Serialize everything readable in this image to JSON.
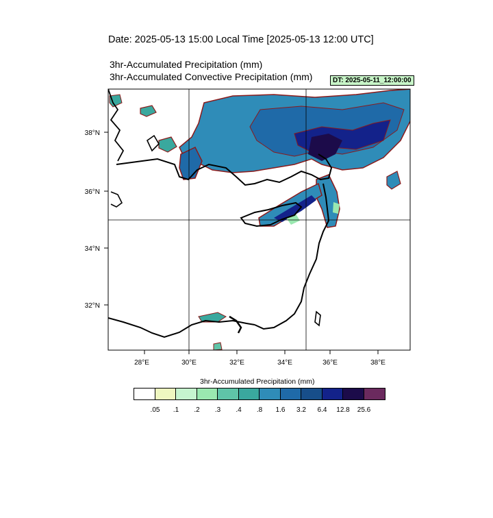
{
  "header": {
    "date_line": "Date: 2025-05-13  15:00 Local Time [2025-05-13  12:00 UTC]",
    "title_line1": "3hr-Accumulated Precipitation   (mm)",
    "title_line2": "3hr-Accumulated Convective Precipitation   (mm)",
    "dt_badge": "DT: 2025-05-11_12:00:00"
  },
  "map": {
    "lon_ticks": [
      "28°E",
      "30°E",
      "32°E",
      "34°E",
      "36°E",
      "38°E"
    ],
    "lat_ticks": [
      "38°N",
      "36°N",
      "34°N",
      "32°N"
    ],
    "gridlines": {
      "lon": [
        "30°E",
        "35°E"
      ],
      "lat": [
        "35°N"
      ]
    }
  },
  "legend": {
    "title": "3hr-Accumulated Precipitation   (mm)",
    "colors": [
      "#ffffff",
      "#eef7c0",
      "#c6f5cf",
      "#9ae8b0",
      "#5fc4a8",
      "#3aa89e",
      "#2f8cb8",
      "#1f6aa8",
      "#174e8a",
      "#13228a",
      "#1c0b4a",
      "#6b2a5e"
    ],
    "labels": [
      ".05",
      ".1",
      ".2",
      ".3",
      ".4",
      ".8",
      "1.6",
      "3.2",
      "6.4",
      "12.8",
      "25.6"
    ]
  }
}
